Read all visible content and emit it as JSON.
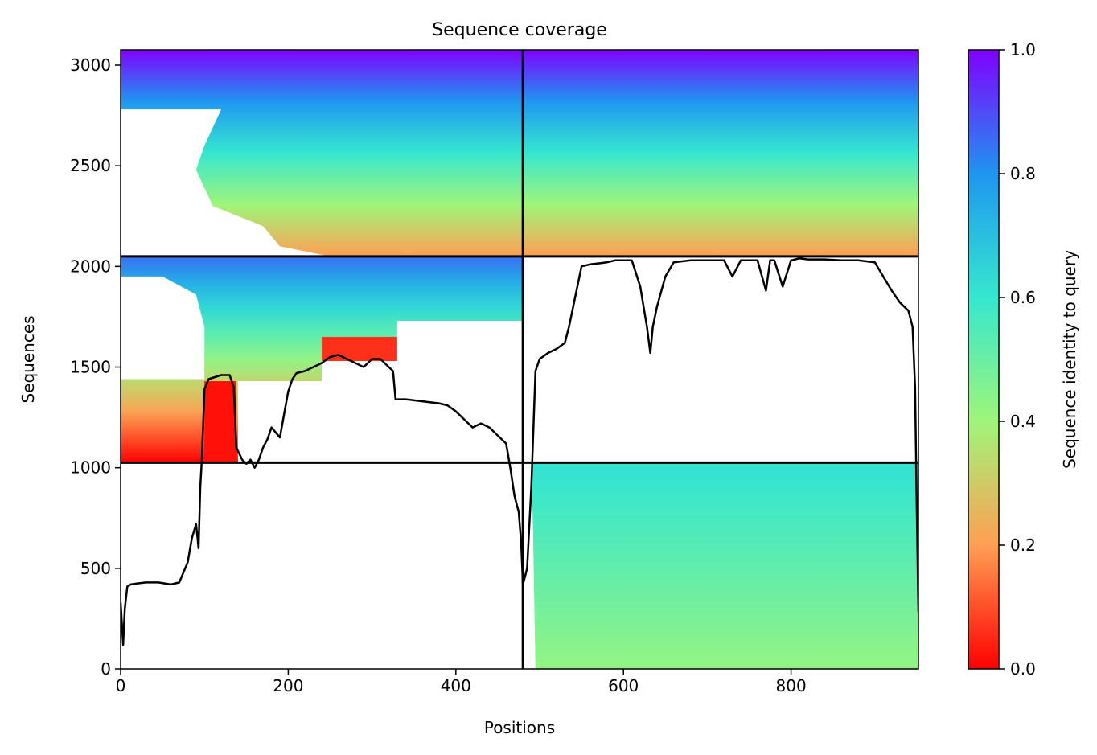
{
  "chart_data": {
    "type": "heatmap",
    "title": "Sequence coverage",
    "xlabel": "Positions",
    "ylabel": "Sequences",
    "xlim": [
      0,
      952
    ],
    "ylim": [
      0,
      3076
    ],
    "x_ticks": [
      0,
      200,
      400,
      600,
      800
    ],
    "y_ticks": [
      0,
      500,
      1000,
      1500,
      2000,
      2500,
      3000
    ],
    "grid": false,
    "colormap": "rainbow_r",
    "colorbar": {
      "label": "Sequence identity to query",
      "range": [
        0.0,
        1.0
      ],
      "ticks": [
        0.0,
        0.2,
        0.4,
        0.6,
        0.8,
        1.0
      ]
    },
    "block_dividers": {
      "x": [
        480
      ],
      "y": [
        1025,
        2050
      ]
    },
    "blocks": [
      {
        "x": [
          480,
          952
        ],
        "y": [
          0,
          1025
        ],
        "identity_low": 0.42,
        "identity_high": 0.62
      },
      {
        "x": [
          0,
          480
        ],
        "y": [
          1025,
          2050
        ],
        "identity_low": 0.0,
        "identity_high": 0.85
      },
      {
        "x": [
          0,
          480
        ],
        "y": [
          2050,
          3076
        ],
        "identity_low": 0.2,
        "identity_high": 1.0
      },
      {
        "x": [
          480,
          952
        ],
        "y": [
          2050,
          3076
        ],
        "identity_low": 0.2,
        "identity_high": 1.0
      }
    ],
    "coverage_line": {
      "x": [
        0,
        3,
        5,
        8,
        12,
        20,
        30,
        45,
        60,
        70,
        80,
        85,
        90,
        93,
        95,
        97,
        100,
        105,
        120,
        130,
        135,
        138,
        145,
        150,
        155,
        160,
        165,
        170,
        175,
        180,
        190,
        200,
        205,
        210,
        220,
        230,
        240,
        250,
        260,
        270,
        280,
        290,
        300,
        310,
        320,
        325,
        328,
        340,
        360,
        380,
        390,
        400,
        410,
        420,
        430,
        440,
        450,
        460,
        465,
        470,
        475,
        478,
        480,
        485,
        490,
        495,
        500,
        510,
        520,
        530,
        535,
        540,
        550,
        560,
        570,
        580,
        590,
        600,
        610,
        620,
        628,
        632,
        635,
        640,
        650,
        660,
        680,
        700,
        720,
        730,
        740,
        760,
        770,
        775,
        780,
        790,
        800,
        810,
        820,
        840,
        860,
        880,
        900,
        910,
        920,
        930,
        940,
        945,
        948,
        950,
        952
      ],
      "y": [
        330,
        120,
        300,
        410,
        420,
        425,
        430,
        430,
        420,
        430,
        530,
        650,
        720,
        600,
        900,
        1050,
        1390,
        1440,
        1460,
        1460,
        1400,
        1100,
        1040,
        1020,
        1040,
        1000,
        1040,
        1100,
        1140,
        1200,
        1150,
        1380,
        1440,
        1470,
        1480,
        1500,
        1520,
        1550,
        1560,
        1540,
        1520,
        1500,
        1540,
        1540,
        1500,
        1480,
        1340,
        1340,
        1330,
        1320,
        1310,
        1280,
        1240,
        1200,
        1220,
        1200,
        1160,
        1120,
        1000,
        860,
        780,
        620,
        420,
        500,
        900,
        1480,
        1540,
        1570,
        1590,
        1620,
        1700,
        1800,
        2000,
        2010,
        2015,
        2020,
        2030,
        2030,
        2030,
        1900,
        1700,
        1570,
        1700,
        1800,
        1950,
        2020,
        2030,
        2030,
        2030,
        1950,
        2030,
        2030,
        1880,
        2030,
        2030,
        1900,
        2030,
        2040,
        2035,
        2035,
        2030,
        2030,
        2020,
        1950,
        1880,
        1820,
        1780,
        1700,
        1400,
        800,
        280
      ]
    }
  }
}
